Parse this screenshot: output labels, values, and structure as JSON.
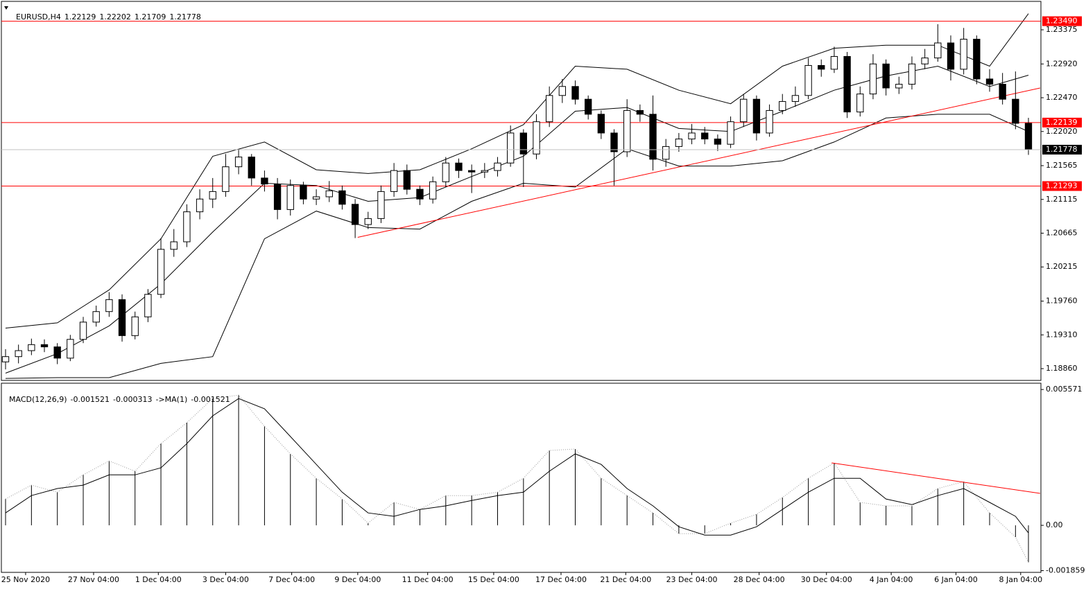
{
  "chart_data": [
    {
      "type": "candlestick",
      "title": "EURUSD,H4",
      "open": [
        1.1895,
        1.1902,
        1.191,
        1.1918,
        1.1915,
        1.19,
        1.1925,
        1.1948,
        1.1962,
        1.1978,
        1.193,
        1.1955,
        1.1985,
        1.2045,
        1.2055,
        1.2095,
        1.2112,
        1.2122,
        1.2155,
        1.2168,
        1.214,
        1.2132,
        1.2098,
        1.213,
        1.2112,
        1.2115,
        1.2123,
        1.2105,
        1.2078,
        1.2086,
        1.2122,
        1.215,
        1.2125,
        1.2112,
        1.2135,
        1.216,
        1.215,
        1.2148,
        1.215,
        1.216,
        1.22,
        1.2172,
        1.2215,
        1.225,
        1.2262,
        1.2245,
        1.2225,
        1.22,
        1.2175,
        1.223,
        1.2225,
        1.2165,
        1.2182,
        1.2192,
        1.22,
        1.2192,
        1.2185,
        1.2215,
        1.2245,
        1.22,
        1.223,
        1.2242,
        1.225,
        1.229,
        1.2285,
        1.2302,
        1.2228,
        1.2252,
        1.2292,
        1.226,
        1.2265,
        1.2292,
        1.23,
        1.232,
        1.2285,
        1.2325,
        1.2272,
        1.2265,
        1.2245,
        1.22129
      ],
      "high": [
        1.1912,
        1.1918,
        1.1926,
        1.1925,
        1.192,
        1.1931,
        1.1955,
        1.197,
        1.1988,
        1.1985,
        1.1962,
        1.1992,
        1.206,
        1.2072,
        1.2105,
        1.2125,
        1.214,
        1.2172,
        1.2178,
        1.2172,
        1.215,
        1.214,
        1.2138,
        1.2135,
        1.2125,
        1.2136,
        1.213,
        1.2112,
        1.2095,
        1.213,
        1.216,
        1.2158,
        1.213,
        1.2142,
        1.2168,
        1.2166,
        1.2158,
        1.216,
        1.2168,
        1.221,
        1.2205,
        1.2225,
        1.2262,
        1.2272,
        1.227,
        1.225,
        1.223,
        1.2205,
        1.2245,
        1.2238,
        1.225,
        1.2192,
        1.22,
        1.2212,
        1.2208,
        1.2198,
        1.2222,
        1.2252,
        1.225,
        1.2238,
        1.2252,
        1.2262,
        1.23,
        1.2298,
        1.2315,
        1.2308,
        1.2262,
        1.2305,
        1.2298,
        1.2275,
        1.2302,
        1.2312,
        1.2345,
        1.233,
        1.234,
        1.233,
        1.2285,
        1.228,
        1.2282,
        1.22202
      ],
      "low": [
        1.1885,
        1.1893,
        1.1904,
        1.1908,
        1.1892,
        1.1896,
        1.192,
        1.1942,
        1.1955,
        1.1922,
        1.1925,
        1.1948,
        1.198,
        1.2035,
        1.2048,
        1.2085,
        1.21,
        1.2115,
        1.2145,
        1.213,
        1.2122,
        1.2085,
        1.209,
        1.2105,
        1.2104,
        1.2108,
        1.2098,
        1.206,
        1.2072,
        1.208,
        1.2115,
        1.2118,
        1.2104,
        1.2106,
        1.2128,
        1.214,
        1.212,
        1.214,
        1.2142,
        1.2155,
        1.2128,
        1.2165,
        1.2208,
        1.224,
        1.2238,
        1.2218,
        1.2192,
        1.213,
        1.2168,
        1.2215,
        1.215,
        1.2155,
        1.2175,
        1.2185,
        1.2185,
        1.2176,
        1.218,
        1.2208,
        1.219,
        1.2195,
        1.2225,
        1.2235,
        1.2245,
        1.2275,
        1.228,
        1.222,
        1.2222,
        1.2245,
        1.225,
        1.2252,
        1.2258,
        1.2285,
        1.2295,
        1.227,
        1.2278,
        1.2265,
        1.2255,
        1.2238,
        1.2205,
        1.21709
      ],
      "close": [
        1.1902,
        1.191,
        1.1918,
        1.1915,
        1.19,
        1.1925,
        1.1948,
        1.1962,
        1.1978,
        1.193,
        1.1955,
        1.1985,
        1.2045,
        1.2055,
        1.2095,
        1.2112,
        1.2122,
        1.2155,
        1.2168,
        1.214,
        1.2132,
        1.2098,
        1.213,
        1.2112,
        1.2115,
        1.2123,
        1.2105,
        1.2078,
        1.2086,
        1.2122,
        1.215,
        1.2125,
        1.2112,
        1.2135,
        1.216,
        1.215,
        1.2148,
        1.215,
        1.216,
        1.22,
        1.2172,
        1.2215,
        1.225,
        1.2262,
        1.2245,
        1.2225,
        1.22,
        1.2175,
        1.223,
        1.2225,
        1.2165,
        1.2182,
        1.2192,
        1.22,
        1.2192,
        1.2185,
        1.2215,
        1.2245,
        1.22,
        1.223,
        1.2242,
        1.225,
        1.229,
        1.2285,
        1.2302,
        1.2228,
        1.2252,
        1.2292,
        1.226,
        1.2265,
        1.2292,
        1.23,
        1.232,
        1.2285,
        1.2325,
        1.2272,
        1.2265,
        1.2245,
        1.22129,
        1.21778
      ],
      "bands": {
        "x": [
          0,
          4,
          8,
          12,
          16,
          20,
          24,
          28,
          32,
          36,
          40,
          44,
          48,
          52,
          56,
          60,
          64,
          68,
          72,
          76,
          79
        ],
        "upper": [
          1.194,
          1.1947,
          1.1991,
          1.2059,
          1.2169,
          1.2188,
          1.2151,
          1.2146,
          1.2151,
          1.2179,
          1.2211,
          1.2289,
          1.2285,
          1.2257,
          1.2239,
          1.2289,
          1.2313,
          1.2317,
          1.2317,
          1.2289,
          1.2359
        ],
        "middle": [
          1.188,
          1.1906,
          1.1943,
          1.1999,
          1.2068,
          1.2133,
          1.213,
          1.2109,
          1.2114,
          1.2142,
          1.2169,
          1.2229,
          1.2234,
          1.2206,
          1.2202,
          1.2229,
          1.2257,
          1.2276,
          1.2289,
          1.2262,
          1.2277
        ],
        "lower": [
          1.1873,
          1.1874,
          1.1874,
          1.1893,
          1.1902,
          1.2059,
          1.2096,
          1.2074,
          1.2072,
          1.2109,
          1.2133,
          1.2128,
          1.2179,
          1.2156,
          1.2156,
          1.2163,
          1.2188,
          1.222,
          1.2225,
          1.2225,
          1.2202
        ]
      },
      "levels": [
        {
          "value": 1.2349,
          "label": "1.23490"
        },
        1.22139,
        1.21293
      ],
      "level_color": "#ff0000",
      "trendline": {
        "x": [
          27.2,
          79.9
        ],
        "y": [
          1.2061,
          1.226
        ]
      },
      "xlim": [
        0,
        79
      ],
      "xticks": [
        {
          "value": 1.55,
          "label": "25 Nov 2020"
        },
        {
          "value": 6.8,
          "label": "27 Nov 04:00"
        },
        {
          "value": 11.8,
          "label": "1 Dec 04:00"
        },
        {
          "value": 17,
          "label": "3 Dec 04:00"
        },
        {
          "value": 22.1,
          "label": "7 Dec 04:00"
        },
        {
          "value": 27.2,
          "label": "9 Dec 04:00"
        },
        {
          "value": 32.6,
          "label": "11 Dec 04:00"
        },
        {
          "value": 37.7,
          "label": "15 Dec 04:00"
        },
        {
          "value": 42.9,
          "label": "17 Dec 04:00"
        },
        {
          "value": 47.9,
          "label": "21 Dec 04:00"
        },
        {
          "value": 53,
          "label": "23 Dec 04:00"
        },
        {
          "value": 58.2,
          "label": "28 Dec 04:00"
        },
        {
          "value": 63.4,
          "label": "30 Dec 04:00"
        },
        {
          "value": 68.4,
          "label": "4 Jan 04:00"
        },
        {
          "value": 73.4,
          "label": "6 Jan 04:00"
        },
        {
          "value": 78.4,
          "label": "8 Jan 04:00"
        }
      ],
      "ylim": [
        1.18703,
        1.23606
      ],
      "yticks": [
        1.23375,
        {
          "value": 1.2292,
          "label": "1.22920"
        },
        {
          "value": 1.2247,
          "label": "1.22470"
        },
        {
          "value": 1.2202,
          "label": "1.22020"
        },
        1.21565,
        1.21115,
        1.20665,
        1.20215,
        {
          "value": 1.1976,
          "label": "1.19760"
        },
        {
          "value": 1.1931,
          "label": "1.19310"
        },
        {
          "value": 1.1886,
          "label": "1.18860"
        }
      ]
    },
    {
      "type": "macd",
      "label": "MACD(12,26,9)",
      "ma_label": "->MA(1)",
      "x": [
        0,
        2,
        4,
        6,
        8,
        10,
        12,
        14,
        16,
        18,
        20,
        22,
        24,
        26,
        28,
        30,
        32,
        34,
        36,
        38,
        40,
        42,
        44,
        46,
        48,
        50,
        52,
        54,
        56,
        58,
        60,
        62,
        64,
        66,
        68,
        70,
        72,
        74,
        76,
        78,
        79
      ],
      "histogram": [
        0.00108,
        0.00165,
        0.00136,
        0.00207,
        0.00264,
        0.00222,
        0.00335,
        0.00421,
        0.0052,
        0.00534,
        0.00406,
        0.00293,
        0.00193,
        0.00108,
        9e-05,
        0.00094,
        0.00065,
        0.00122,
        0.00122,
        0.00136,
        0.00193,
        0.00307,
        0.00313,
        0.00193,
        0.00122,
        0.00051,
        -0.00034,
        -0.00034,
        9e-05,
        0.00045,
        0.00114,
        0.00193,
        0.00256,
        0.00094,
        0.0008,
        0.0008,
        0.00151,
        0.00179,
        0.00051,
        -0.00048,
        -0.001521
      ],
      "signal": [
        0.00051,
        0.00122,
        0.00151,
        0.00165,
        0.00207,
        0.00207,
        0.00236,
        0.00335,
        0.00449,
        0.0052,
        0.00478,
        0.00364,
        0.0025,
        0.00136,
        0.00051,
        0.00037,
        0.00065,
        0.0008,
        0.00102,
        0.00122,
        0.00136,
        0.00222,
        0.00293,
        0.0025,
        0.00151,
        0.0008,
        -6e-05,
        -0.0004,
        -0.0004,
        -6e-05,
        0.00065,
        0.00136,
        0.00193,
        0.00193,
        0.00108,
        0.00085,
        0.00122,
        0.00151,
        0.00094,
        0.00037,
        -0.000313
      ],
      "trendline": {
        "x": [
          63.8,
          79.9
        ],
        "y": [
          0.00256,
          0.00131
        ]
      },
      "ylim": [
        -0.00193,
        0.00583
      ],
      "yticks": [
        0.005571,
        {
          "value": 0,
          "label": "0.00"
        },
        -0.001859
      ]
    }
  ]
}
